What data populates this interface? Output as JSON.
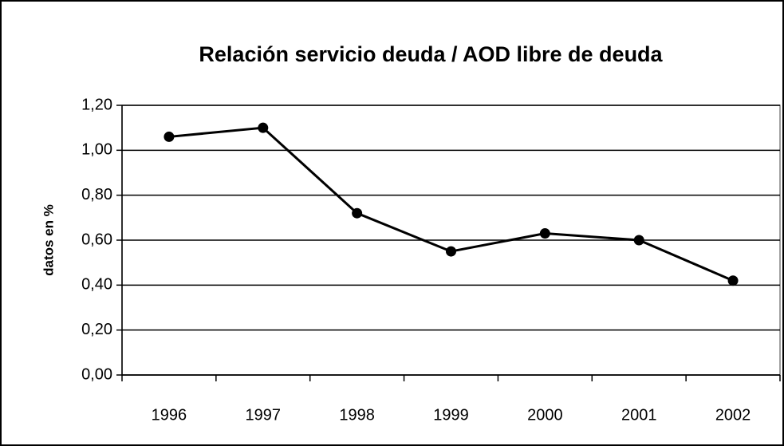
{
  "chart_data": {
    "type": "line",
    "title": "Relación servicio deuda / AOD libre de deuda",
    "y_label": "datos en %",
    "categories": [
      "1996",
      "1997",
      "1998",
      "1999",
      "2000",
      "2001",
      "2002"
    ],
    "series": [
      {
        "name": "Relación servicio deuda / AOD libre de deuda",
        "color": "#000000",
        "values": [
          1.06,
          1.1,
          0.72,
          0.55,
          0.63,
          0.6,
          0.42
        ]
      }
    ],
    "ylim": [
      0,
      1.2
    ],
    "yticks": [
      {
        "value": 0,
        "label": "0,00"
      },
      {
        "value": 0.2,
        "label": "0,20"
      },
      {
        "value": 0.4,
        "label": "0,40"
      },
      {
        "value": 0.6,
        "label": "0,60"
      },
      {
        "value": 0.8,
        "label": "0,80"
      },
      {
        "value": 1.0,
        "label": "1,00"
      },
      {
        "value": 1.2,
        "label": "1,20"
      }
    ],
    "grid": true
  }
}
